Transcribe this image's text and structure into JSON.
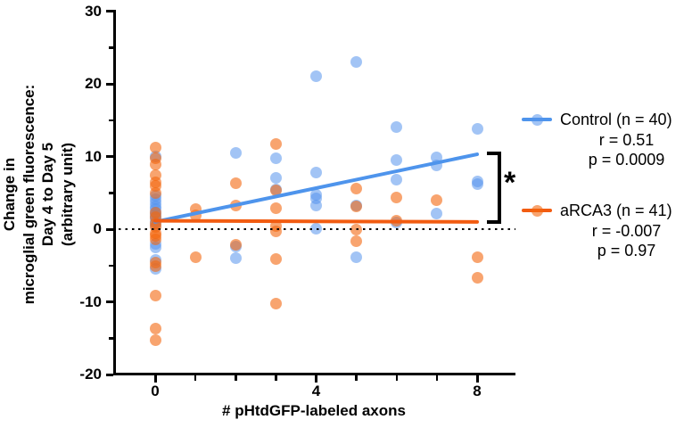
{
  "chart_data": {
    "type": "scatter",
    "xlabel": "# pHtdGFP-labeled axons",
    "ylabel_lines": [
      "Change in",
      "microglial green fluorescence:",
      "Day 4 to Day 5",
      "(arbitrary unit)"
    ],
    "xlim": [
      0,
      8.5
    ],
    "ylim": [
      -20,
      30
    ],
    "x_major_ticks": [
      0,
      4,
      8
    ],
    "x_minor_ticks": [
      1,
      2,
      3,
      5,
      6,
      7
    ],
    "y_major_ticks": [
      30,
      20,
      10,
      0,
      -10,
      -20
    ],
    "y_minor_ticks": [
      25,
      15,
      5,
      -5,
      -15
    ],
    "reference_line_y": 0,
    "grid": false,
    "legend_position": "right",
    "significance": {
      "label": "*"
    },
    "series": [
      {
        "name": "Control (n = 40)",
        "r_label": "r = 0.51",
        "p_label": "p = 0.0009",
        "line_color": "#4E94EC",
        "point_color": "#5694EC",
        "point_opacity": 0.55,
        "trend": {
          "x1": 0,
          "y1": 1.0,
          "x2": 8,
          "y2": 10.3
        },
        "points": [
          [
            0,
            10.0
          ],
          [
            0,
            4.6
          ],
          [
            0,
            4.1
          ],
          [
            0,
            3.6
          ],
          [
            0,
            3.1
          ],
          [
            0,
            2.7
          ],
          [
            0,
            2.3
          ],
          [
            0,
            1.9
          ],
          [
            0,
            1.5
          ],
          [
            0,
            1.0
          ],
          [
            0,
            0.5
          ],
          [
            0,
            -2.0
          ],
          [
            0,
            -2.5
          ],
          [
            0,
            -4.2
          ],
          [
            0,
            -5.4
          ],
          [
            2,
            10.5
          ],
          [
            2,
            -2.4
          ],
          [
            2,
            -4.0
          ],
          [
            3,
            9.8
          ],
          [
            3,
            7.0
          ],
          [
            3,
            5.5
          ],
          [
            4,
            21
          ],
          [
            4,
            7.8
          ],
          [
            4,
            4.7
          ],
          [
            4,
            4.2
          ],
          [
            4,
            3.2
          ],
          [
            4,
            0.1
          ],
          [
            5,
            23
          ],
          [
            5,
            3.3
          ],
          [
            5,
            -3.9
          ],
          [
            6,
            14.1
          ],
          [
            6,
            9.5
          ],
          [
            6,
            6.8
          ],
          [
            6,
            0.9
          ],
          [
            7,
            9.9
          ],
          [
            7,
            8.8
          ],
          [
            7,
            2.2
          ],
          [
            8,
            13.8
          ],
          [
            8,
            6.6
          ],
          [
            8,
            6.2
          ]
        ]
      },
      {
        "name": "aRCA3 (n = 41)",
        "r_label": "r = -0.007",
        "p_label": "p = 0.97",
        "line_color": "#F25C11",
        "point_color": "#F3680F",
        "point_opacity": 0.6,
        "trend": {
          "x1": 0,
          "y1": 1.15,
          "x2": 8,
          "y2": 1.0
        },
        "points": [
          [
            0,
            11.2
          ],
          [
            0,
            9.8
          ],
          [
            0,
            8.9
          ],
          [
            0,
            7.4
          ],
          [
            0,
            6.4
          ],
          [
            0,
            5.9
          ],
          [
            0,
            5.0
          ],
          [
            0,
            2.3
          ],
          [
            0,
            1.6
          ],
          [
            0,
            0.8
          ],
          [
            0,
            0.3
          ],
          [
            0,
            -0.6
          ],
          [
            0,
            -0.9
          ],
          [
            0,
            -1.4
          ],
          [
            0,
            -4.6
          ],
          [
            0,
            -5.1
          ],
          [
            0,
            -9.2
          ],
          [
            0,
            -13.7
          ],
          [
            0,
            -15.3
          ],
          [
            1,
            2.7
          ],
          [
            1,
            1.9
          ],
          [
            1,
            -3.9
          ],
          [
            2,
            6.3
          ],
          [
            2,
            3.3
          ],
          [
            2,
            -2.2
          ],
          [
            3,
            11.7
          ],
          [
            3,
            5.3
          ],
          [
            3,
            2.9
          ],
          [
            3,
            0.4
          ],
          [
            3,
            -0.3
          ],
          [
            3,
            -4.1
          ],
          [
            3,
            -10.2
          ],
          [
            5,
            5.6
          ],
          [
            5,
            3.1
          ],
          [
            5,
            -0.1
          ],
          [
            5,
            -1.7
          ],
          [
            6,
            4.4
          ],
          [
            6,
            1.2
          ],
          [
            7,
            4.0
          ],
          [
            8,
            -3.9
          ],
          [
            8,
            -6.7
          ]
        ]
      }
    ]
  }
}
